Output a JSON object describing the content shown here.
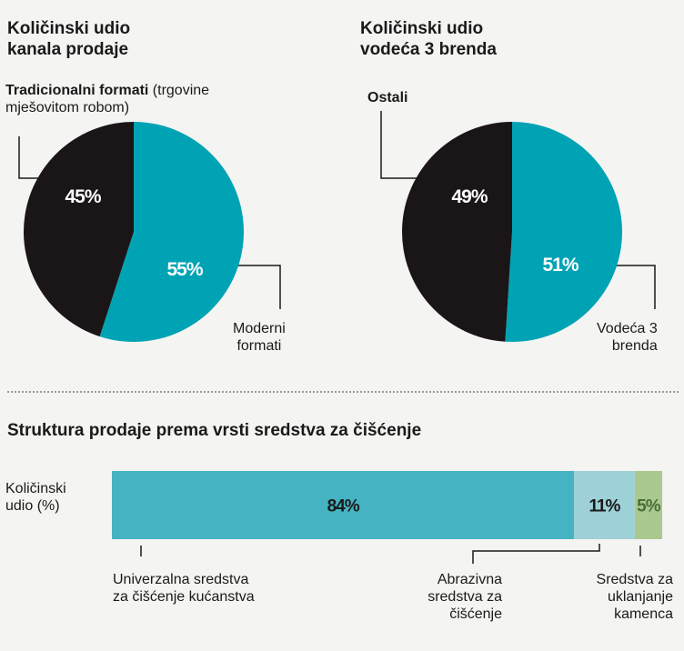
{
  "chart_data": [
    {
      "type": "pie",
      "title_line1": "Količinski udio",
      "title_line2": "kanala prodaje",
      "slices": [
        {
          "label_line1": "Tradicionalni formati",
          "label_suffix": " (trgovine",
          "label_line2": "mješovitom robom)",
          "value": 45,
          "display": "45%",
          "color": "#1a1617"
        },
        {
          "label_line1": "Moderni",
          "label_line2": "formati",
          "value": 55,
          "display": "55%",
          "color": "#00a3b4"
        }
      ]
    },
    {
      "type": "pie",
      "title_line1": "Količinski udio",
      "title_line2": "vodeća 3 brenda",
      "slices": [
        {
          "label_line1": "Ostali",
          "value": 49,
          "display": "49%",
          "color": "#1a1617"
        },
        {
          "label_line1": "Vodeća 3",
          "label_line2": "brenda",
          "value": 51,
          "display": "51%",
          "color": "#00a3b4"
        }
      ]
    },
    {
      "type": "bar",
      "orientation": "horizontal-stacked",
      "title": "Struktura prodaje prema vrsti sredstva za čišćenje",
      "ylabel_line1": "Količinski",
      "ylabel_line2": "udio (%)",
      "segments": [
        {
          "value": 84,
          "display": "84%",
          "color": "#45b3c1",
          "text_color": "#1a1a1a",
          "label_lines": [
            "Univerzalna sredstva",
            "za čišćenje kućanstva"
          ]
        },
        {
          "value": 11,
          "display": "11%",
          "color": "#9dd0d7",
          "text_color": "#1a1a1a",
          "label_lines": [
            "Abrazivna",
            "sredstva za",
            "čišćenje"
          ]
        },
        {
          "value": 5,
          "display": "5%",
          "color": "#a9c98e",
          "text_color": "#4a6e3a",
          "label_lines": [
            "Sredstva za",
            "uklanjanje",
            "kamenca"
          ]
        }
      ]
    }
  ]
}
